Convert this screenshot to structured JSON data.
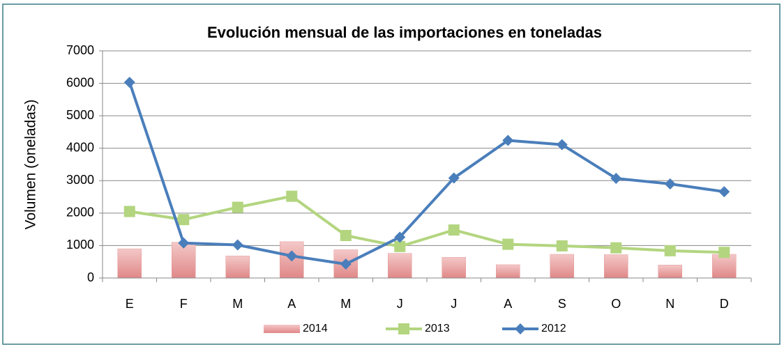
{
  "chart_data": {
    "type": "combo",
    "title": "Evolución mensual de las importaciones en toneladas",
    "y_label": "Volumen (oneladas)",
    "categories": [
      "E",
      "F",
      "M",
      "A",
      "M",
      "J",
      "J",
      "A",
      "S",
      "O",
      "N",
      "D"
    ],
    "series": [
      {
        "name": "2014",
        "type": "bar",
        "color": "#e59a9a",
        "values": [
          900,
          1100,
          680,
          1120,
          870,
          760,
          640,
          410,
          730,
          720,
          400,
          730
        ]
      },
      {
        "name": "2013",
        "type": "line",
        "marker": "square",
        "color": "#b3d57f",
        "values": [
          2050,
          1800,
          2180,
          2520,
          1310,
          970,
          1480,
          1040,
          990,
          930,
          840,
          790
        ]
      },
      {
        "name": "2012",
        "type": "line",
        "marker": "diamond",
        "color": "#4a7ebb",
        "values": [
          6030,
          1080,
          1020,
          680,
          430,
          1260,
          3080,
          4240,
          4110,
          3070,
          2900,
          2660
        ]
      }
    ],
    "ylim": [
      0,
      7000
    ],
    "yticks": [
      0,
      1000,
      2000,
      3000,
      4000,
      5000,
      6000,
      7000
    ],
    "grid": true,
    "legend": "bottom"
  }
}
